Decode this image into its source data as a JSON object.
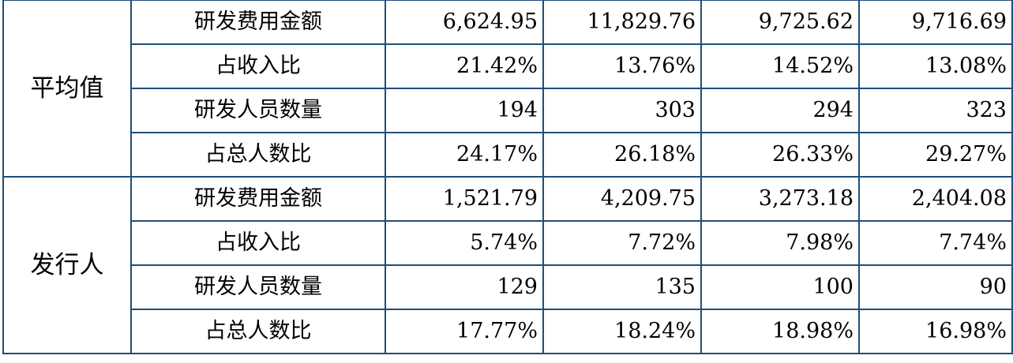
{
  "table": {
    "groups": [
      {
        "label": "平均值",
        "rows": [
          {
            "metric": "研发费用金额",
            "values": [
              "6,624.95",
              "11,829.76",
              "9,725.62",
              "9,716.69"
            ]
          },
          {
            "metric": "占收入比",
            "values": [
              "21.42%",
              "13.76%",
              "14.52%",
              "13.08%"
            ]
          },
          {
            "metric": "研发人员数量",
            "values": [
              "194",
              "303",
              "294",
              "323"
            ]
          },
          {
            "metric": "占总人数比",
            "values": [
              "24.17%",
              "26.18%",
              "26.33%",
              "29.27%"
            ]
          }
        ]
      },
      {
        "label": "发行人",
        "rows": [
          {
            "metric": "研发费用金额",
            "values": [
              "1,521.79",
              "4,209.75",
              "3,273.18",
              "2,404.08"
            ]
          },
          {
            "metric": "占收入比",
            "values": [
              "5.74%",
              "7.72%",
              "7.98%",
              "7.74%"
            ]
          },
          {
            "metric": "研发人员数量",
            "values": [
              "129",
              "135",
              "100",
              "90"
            ]
          },
          {
            "metric": "占总人数比",
            "values": [
              "17.77%",
              "18.24%",
              "18.98%",
              "16.98%"
            ]
          }
        ]
      }
    ]
  }
}
